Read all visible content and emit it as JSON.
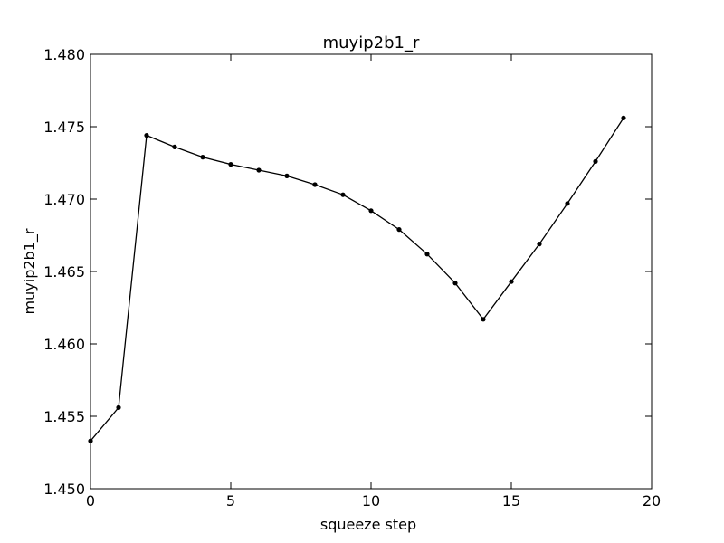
{
  "chart_data": {
    "type": "line",
    "title": "muyip2b1_r",
    "xlabel": "squeeze step",
    "ylabel": "muyip2b1_r",
    "xlim": [
      0,
      20
    ],
    "ylim": [
      1.45,
      1.48
    ],
    "x_ticks": [
      "0",
      "5",
      "10",
      "15",
      "20"
    ],
    "y_ticks": [
      "1.450",
      "1.455",
      "1.460",
      "1.465",
      "1.470",
      "1.475",
      "1.480"
    ],
    "grid": false,
    "series": [
      {
        "color": "#000000",
        "marker": "dot",
        "x": [
          0,
          1,
          2,
          3,
          4,
          5,
          6,
          7,
          8,
          9,
          10,
          11,
          12,
          13,
          14,
          15,
          16,
          17,
          18,
          19
        ],
        "y": [
          1.4533,
          1.4556,
          1.4744,
          1.4736,
          1.4729,
          1.4724,
          1.472,
          1.4716,
          1.471,
          1.4703,
          1.4692,
          1.4679,
          1.4662,
          1.4642,
          1.4617,
          1.4643,
          1.4669,
          1.4697,
          1.4726,
          1.4756
        ]
      }
    ]
  }
}
